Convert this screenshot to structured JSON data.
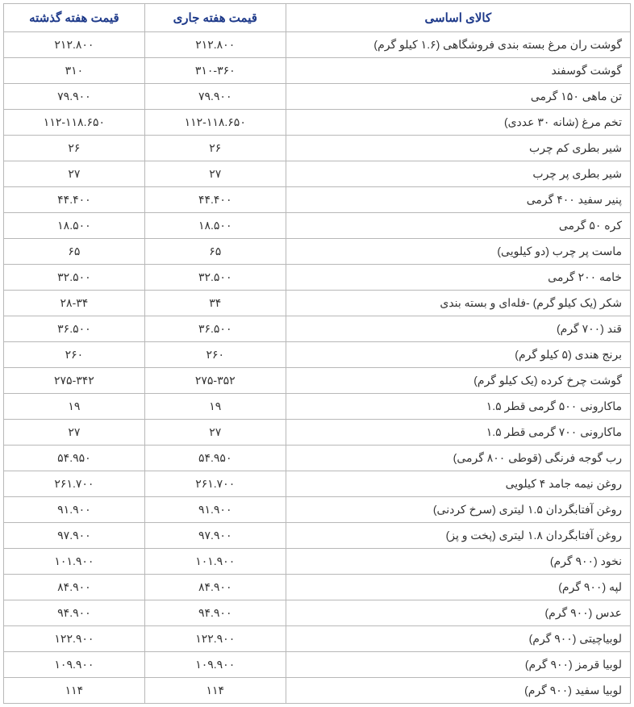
{
  "table": {
    "type": "table",
    "header_color": "#1e3a8a",
    "header_fontsize": 15,
    "cell_fontsize": 14,
    "cell_color": "#333333",
    "border_color": "#b8b8b8",
    "background_color": "#ffffff",
    "columns": [
      {
        "key": "item",
        "label": "کالای اساسی",
        "width": "55%",
        "align": "right"
      },
      {
        "key": "current",
        "label": "قیمت هفته جاری",
        "width": "22.5%",
        "align": "center"
      },
      {
        "key": "last",
        "label": "قیمت هفته گذشته",
        "width": "22.5%",
        "align": "center"
      }
    ],
    "rows": [
      {
        "item": "گوشت ران مرغ بسته بندی فروشگاهی (۱.۶ کیلو گرم)",
        "current": "۲۱۲.۸۰۰",
        "last": "۲۱۲.۸۰۰"
      },
      {
        "item": "گوشت گوسفند",
        "current": "۳۱۰-۳۶۰",
        "last": "۳۱۰"
      },
      {
        "item": "تن ماهی ۱۵۰ گرمی",
        "current": "۷۹.۹۰۰",
        "last": "۷۹.۹۰۰"
      },
      {
        "item": "تخم مرغ (شانه ۳۰ عددی)",
        "current": "۱۱۲-۱۱۸.۶۵۰",
        "last": "۱۱۲-۱۱۸.۶۵۰"
      },
      {
        "item": "شیر بطری کم چرب",
        "current": "۲۶",
        "last": "۲۶"
      },
      {
        "item": "شیر بطری پر چرب",
        "current": "۲۷",
        "last": "۲۷"
      },
      {
        "item": "پنیر سفید ۴۰۰ گرمی",
        "current": "۴۴.۴۰۰",
        "last": "۴۴.۴۰۰"
      },
      {
        "item": "کره ۵۰ گرمی",
        "current": "۱۸.۵۰۰",
        "last": "۱۸.۵۰۰"
      },
      {
        "item": "ماست پر چرب (دو کیلویی)",
        "current": "۶۵",
        "last": "۶۵"
      },
      {
        "item": "خامه ۲۰۰ گرمی",
        "current": "۳۲.۵۰۰",
        "last": "۳۲.۵۰۰"
      },
      {
        "item": "شکر (یک کیلو گرم) -فله‌ای و بسته بندی",
        "current": "۳۴",
        "last": "۲۸-۳۴"
      },
      {
        "item": "قند (۷۰۰ گرم)",
        "current": "۳۶.۵۰۰",
        "last": "۳۶.۵۰۰"
      },
      {
        "item": "برنج هندی (۵ کیلو گرم)",
        "current": "۲۶۰",
        "last": "۲۶۰"
      },
      {
        "item": "گوشت چرخ کرده (یک کیلو گرم)",
        "current": "۲۷۵-۳۵۲",
        "last": "۲۷۵-۳۴۲"
      },
      {
        "item": "ماکارونی ۵۰۰ گرمی قطر ۱.۵",
        "current": "۱۹",
        "last": "۱۹"
      },
      {
        "item": "ماکارونی ۷۰۰ گرمی قطر ۱.۵",
        "current": "۲۷",
        "last": "۲۷"
      },
      {
        "item": "رب گوجه فرنگی (قوطی ۸۰۰ گرمی)",
        "current": "۵۴.۹۵۰",
        "last": "۵۴.۹۵۰"
      },
      {
        "item": "روغن نیمه جامد ۴ کیلویی",
        "current": "۲۶۱.۷۰۰",
        "last": "۲۶۱.۷۰۰"
      },
      {
        "item": "روغن آفتابگردان ۱.۵ لیتری (سرخ کردنی)",
        "current": "۹۱.۹۰۰",
        "last": "۹۱.۹۰۰"
      },
      {
        "item": "روغن آفتابگردان ۱.۸ لیتری (پخت و پز)",
        "current": "۹۷.۹۰۰",
        "last": "۹۷.۹۰۰"
      },
      {
        "item": "نخود (۹۰۰ گرم)",
        "current": "۱۰۱.۹۰۰",
        "last": "۱۰۱.۹۰۰"
      },
      {
        "item": "لپه (۹۰۰ گرم)",
        "current": "۸۴.۹۰۰",
        "last": "۸۴.۹۰۰"
      },
      {
        "item": "عدس (۹۰۰ گرم)",
        "current": "۹۴.۹۰۰",
        "last": "۹۴.۹۰۰"
      },
      {
        "item": "لوبیاچیتی (۹۰۰ گرم)",
        "current": "۱۲۲.۹۰۰",
        "last": "۱۲۲.۹۰۰"
      },
      {
        "item": "لوبیا قرمز (۹۰۰ گرم)",
        "current": "۱۰۹.۹۰۰",
        "last": "۱۰۹.۹۰۰"
      },
      {
        "item": "لوبیا سفید (۹۰۰ گرم)",
        "current": "۱۱۴",
        "last": "۱۱۴"
      }
    ]
  }
}
